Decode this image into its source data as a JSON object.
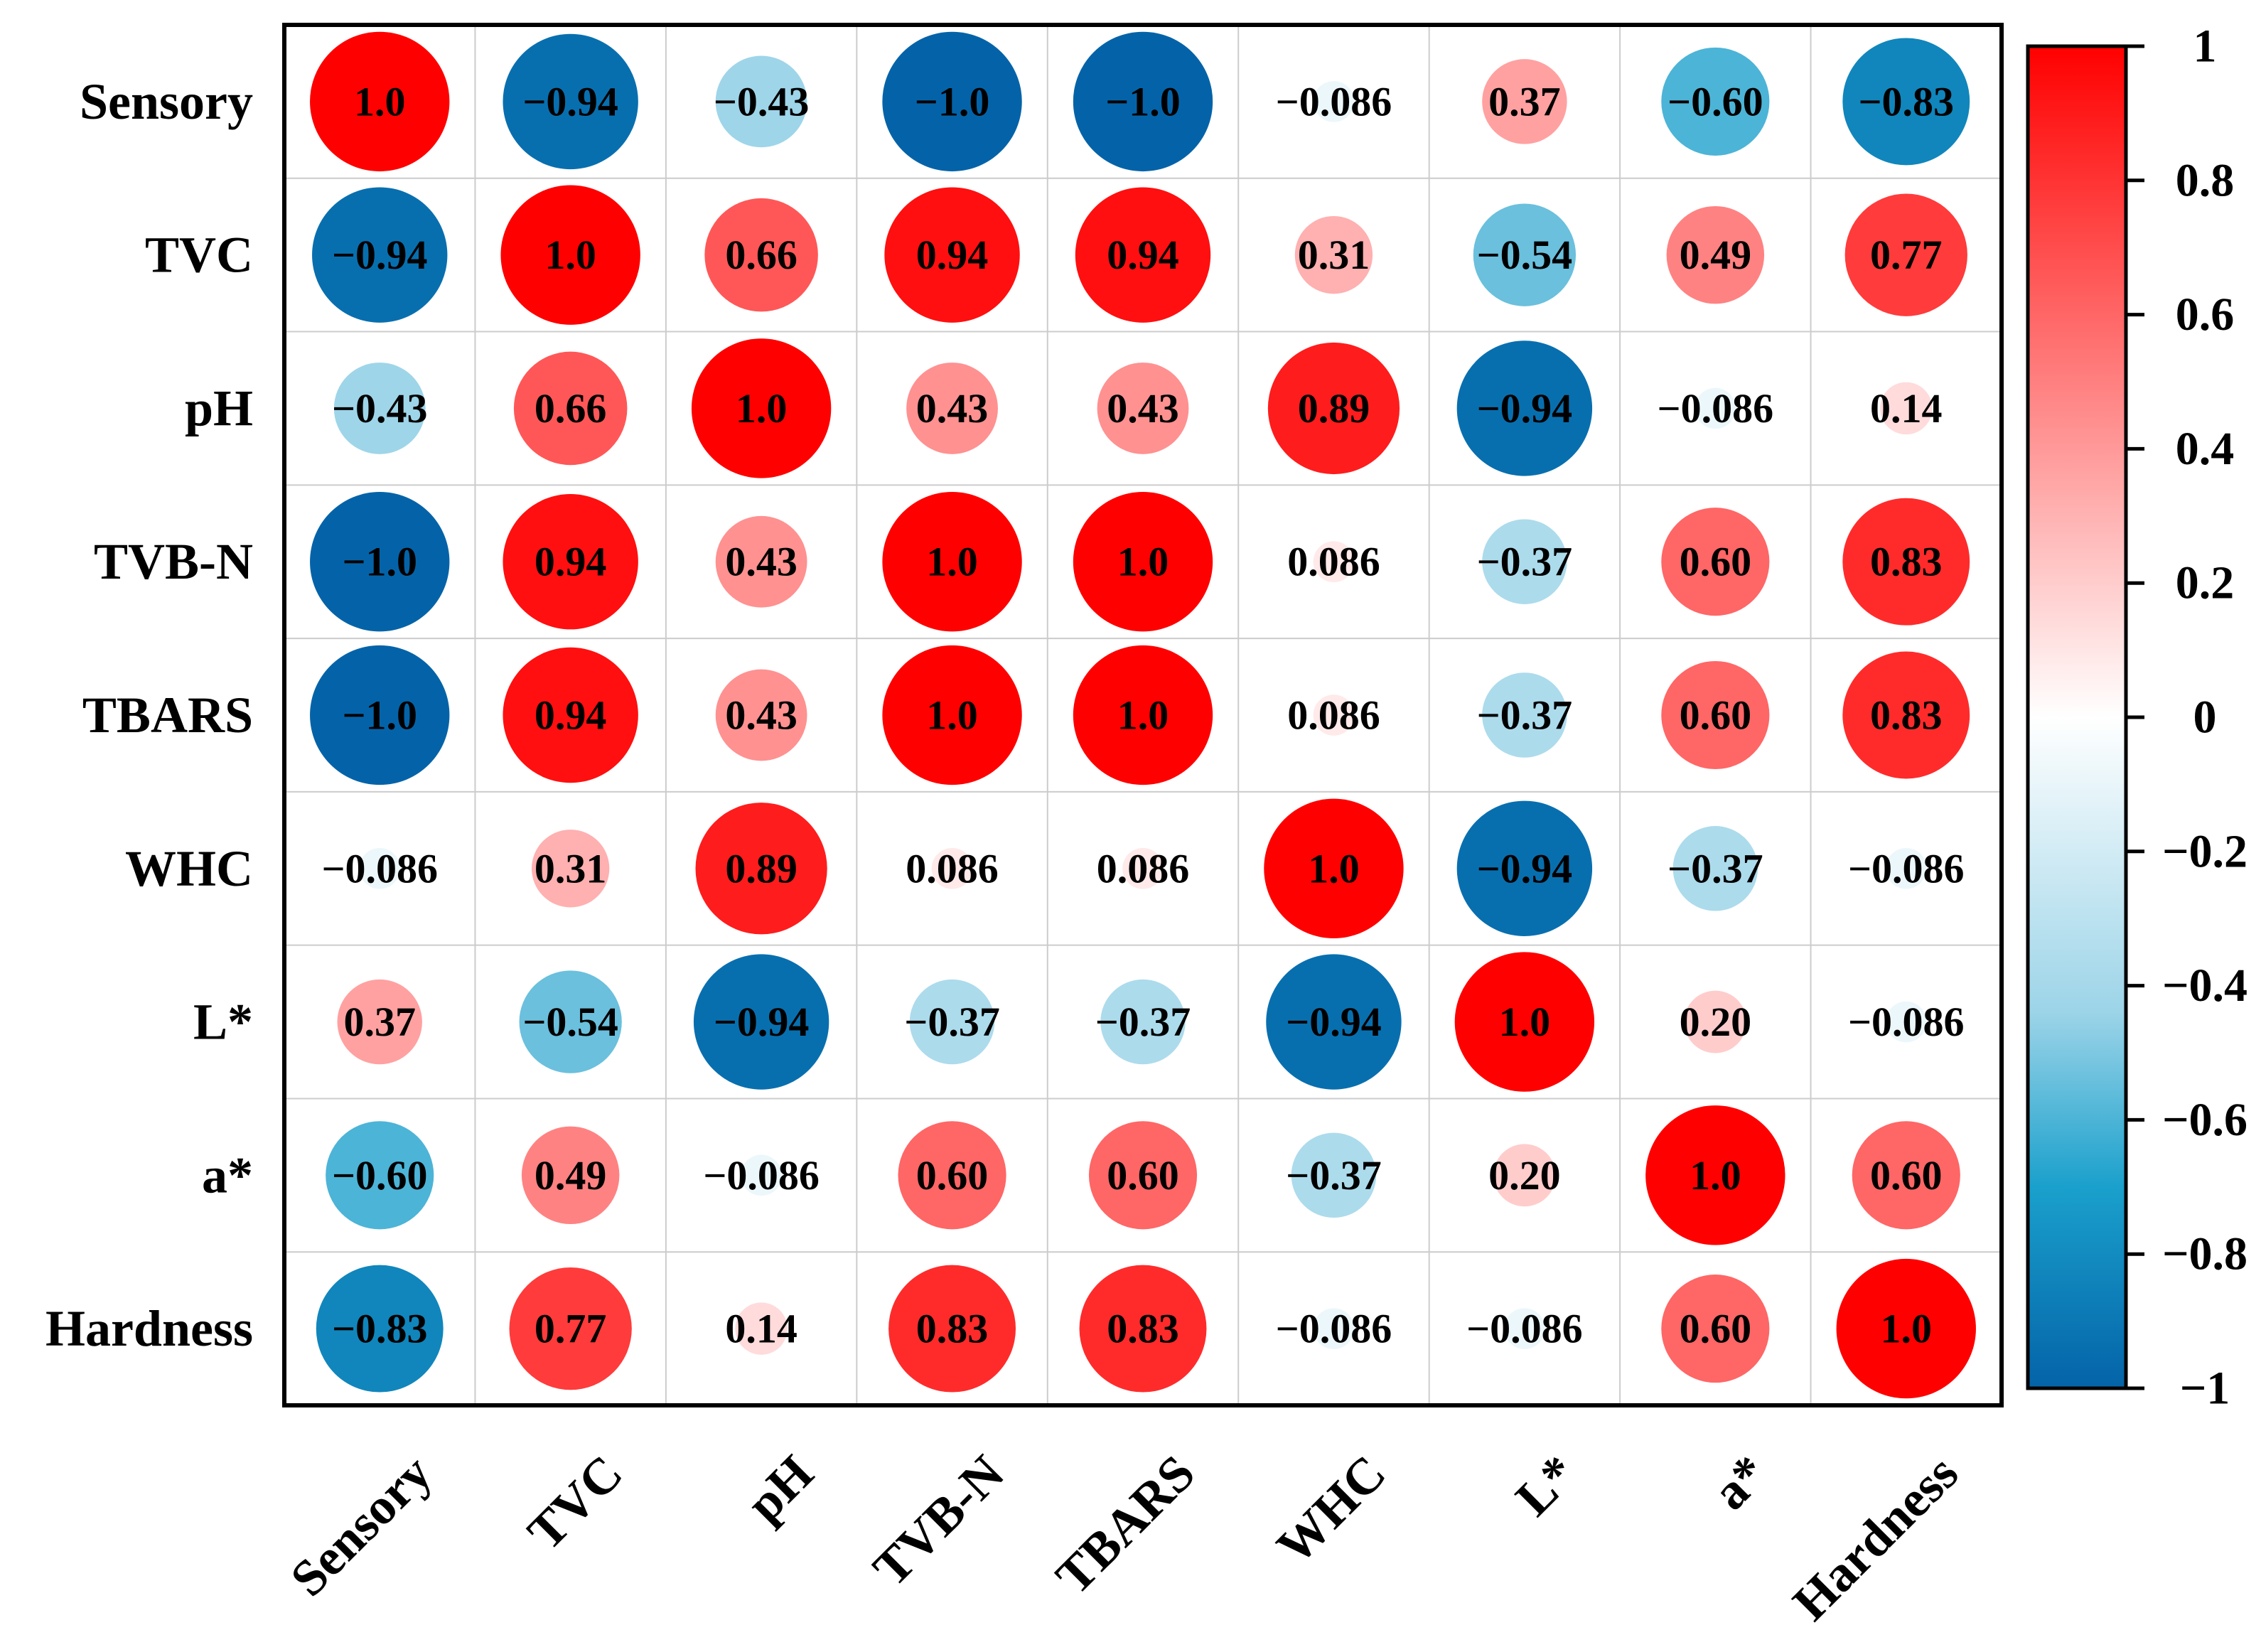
{
  "chart_data": {
    "type": "heatmap",
    "subtype": "correlation-circles",
    "variables": [
      "Sensory",
      "TVC",
      "pH",
      "TVB-N",
      "TBARS",
      "WHC",
      "L*",
      "a*",
      "Hardness"
    ],
    "matrix": [
      [
        "1.0",
        "−0.94",
        "−0.43",
        "−1.0",
        "−1.0",
        "−0.086",
        "0.37",
        "−0.60",
        "−0.83"
      ],
      [
        "−0.94",
        "1.0",
        "0.66",
        "0.94",
        "0.94",
        "0.31",
        "−0.54",
        "0.49",
        "0.77"
      ],
      [
        "−0.43",
        "0.66",
        "1.0",
        "0.43",
        "0.43",
        "0.89",
        "−0.94",
        "−0.086",
        "0.14"
      ],
      [
        "−1.0",
        "0.94",
        "0.43",
        "1.0",
        "1.0",
        "0.086",
        "−0.37",
        "0.60",
        "0.83"
      ],
      [
        "−1.0",
        "0.94",
        "0.43",
        "1.0",
        "1.0",
        "0.086",
        "−0.37",
        "0.60",
        "0.83"
      ],
      [
        "−0.086",
        "0.31",
        "0.89",
        "0.086",
        "0.086",
        "1.0",
        "−0.94",
        "−0.37",
        "−0.086"
      ],
      [
        "0.37",
        "−0.54",
        "−0.94",
        "−0.37",
        "−0.37",
        "−0.94",
        "1.0",
        "0.20",
        "−0.086"
      ],
      [
        "−0.60",
        "0.49",
        "−0.086",
        "0.60",
        "0.60",
        "−0.37",
        "0.20",
        "1.0",
        "0.60"
      ],
      [
        "−0.83",
        "0.77",
        "0.14",
        "0.83",
        "0.83",
        "−0.086",
        "−0.086",
        "0.60",
        "1.0"
      ]
    ],
    "colorbar": {
      "range": [
        -1,
        1
      ],
      "ticks": [
        "1",
        "0.8",
        "0.6",
        "0.4",
        "0.2",
        "0",
        "−0.2",
        "−0.4",
        "−0.6",
        "−0.8",
        "−1"
      ],
      "tick_values": [
        1,
        0.8,
        0.6,
        0.4,
        0.2,
        0,
        -0.2,
        -0.4,
        -0.6,
        -0.8,
        -1
      ],
      "colors": {
        "positive": "#ff0000",
        "neutral": "#ffffff",
        "light_blue": "#9cd4e8",
        "mid_blue": "#1aa0cc",
        "negative": "#0463a8"
      }
    },
    "grid_color": "#cccccc",
    "border_color": "#000000"
  }
}
